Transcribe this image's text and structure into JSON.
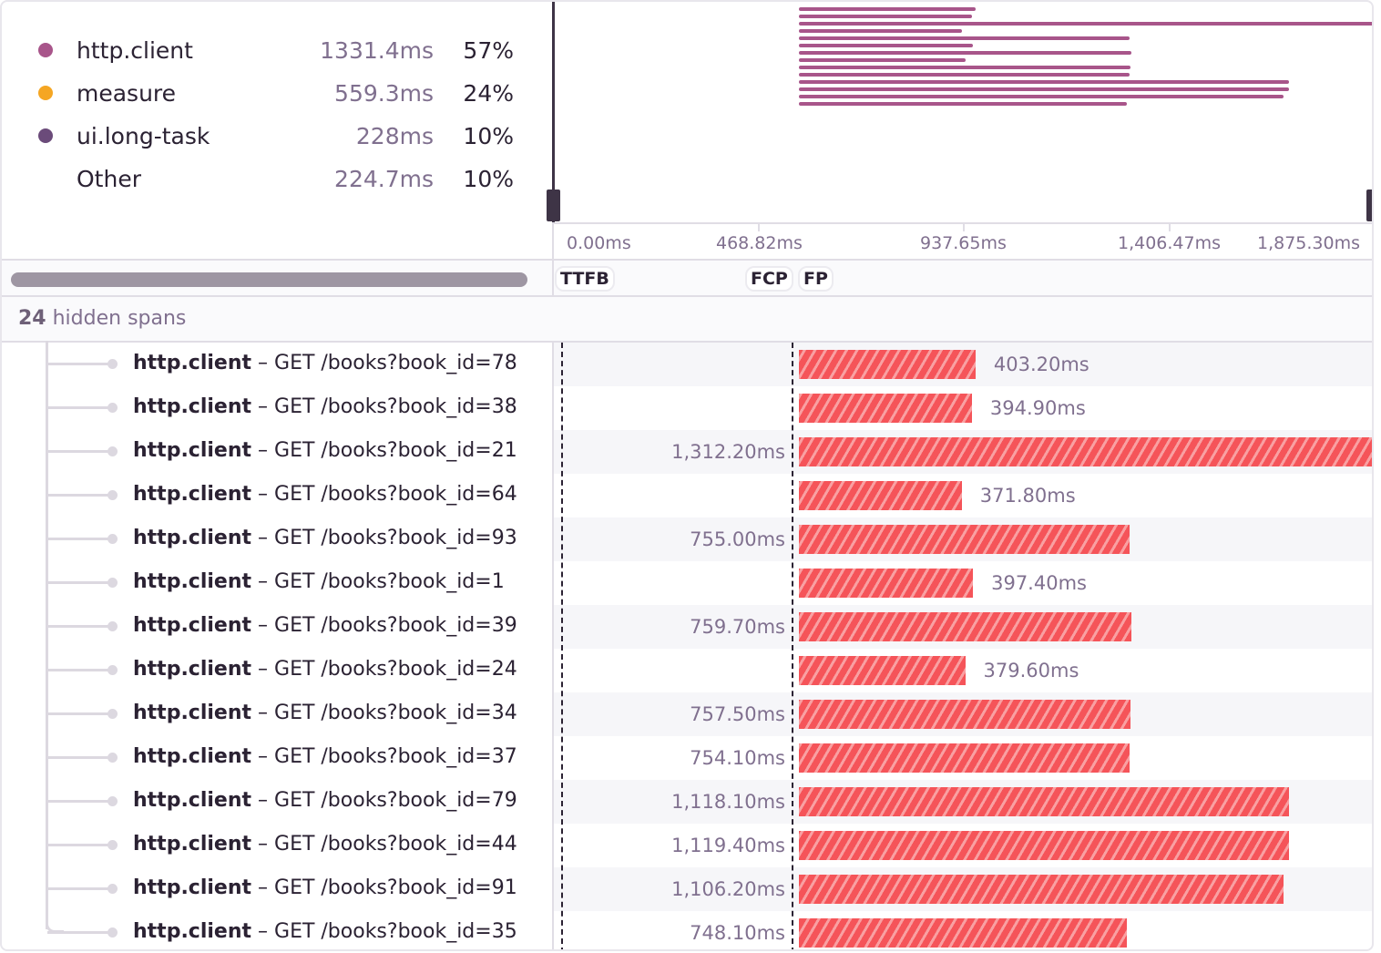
{
  "legend": [
    {
      "name": "http.client",
      "duration": "1331.4ms",
      "percent": "57%",
      "color": "#a8558a"
    },
    {
      "name": "measure",
      "duration": "559.3ms",
      "percent": "24%",
      "color": "#f5a623"
    },
    {
      "name": "ui.long-task",
      "duration": "228ms",
      "percent": "10%",
      "color": "#6b4b7a"
    },
    {
      "name": "Other",
      "duration": "224.7ms",
      "percent": "10%",
      "color": ""
    }
  ],
  "axis": {
    "ticks": [
      "0.00ms",
      "468.82ms",
      "937.65ms",
      "1,406.47ms",
      "1,875.30ms"
    ]
  },
  "markers": [
    "TTFB",
    "FCP",
    "FP"
  ],
  "hidden_spans": {
    "count": "24",
    "label": " hidden spans"
  },
  "colors": {
    "span_bar": "#f55459",
    "minimap_bar": "#a8558a"
  },
  "spans": [
    {
      "op": "http.client",
      "desc": " – GET /books?book_id=78",
      "duration": "403.20ms",
      "ms": 403.2
    },
    {
      "op": "http.client",
      "desc": " – GET /books?book_id=38",
      "duration": "394.90ms",
      "ms": 394.9
    },
    {
      "op": "http.client",
      "desc": " – GET /books?book_id=21",
      "duration": "1,312.20ms",
      "ms": 1312.2
    },
    {
      "op": "http.client",
      "desc": " – GET /books?book_id=64",
      "duration": "371.80ms",
      "ms": 371.8
    },
    {
      "op": "http.client",
      "desc": " – GET /books?book_id=93",
      "duration": "755.00ms",
      "ms": 755.0
    },
    {
      "op": "http.client",
      "desc": " – GET /books?book_id=1",
      "duration": "397.40ms",
      "ms": 397.4
    },
    {
      "op": "http.client",
      "desc": " – GET /books?book_id=39",
      "duration": "759.70ms",
      "ms": 759.7
    },
    {
      "op": "http.client",
      "desc": " – GET /books?book_id=24",
      "duration": "379.60ms",
      "ms": 379.6
    },
    {
      "op": "http.client",
      "desc": " – GET /books?book_id=34",
      "duration": "757.50ms",
      "ms": 757.5
    },
    {
      "op": "http.client",
      "desc": " – GET /books?book_id=37",
      "duration": "754.10ms",
      "ms": 754.1
    },
    {
      "op": "http.client",
      "desc": " – GET /books?book_id=79",
      "duration": "1,118.10ms",
      "ms": 1118.1
    },
    {
      "op": "http.client",
      "desc": " – GET /books?book_id=44",
      "duration": "1,119.40ms",
      "ms": 1119.4
    },
    {
      "op": "http.client",
      "desc": " – GET /books?book_id=91",
      "duration": "1,106.20ms",
      "ms": 1106.2
    },
    {
      "op": "http.client",
      "desc": " – GET /books?book_id=35",
      "duration": "748.10ms",
      "ms": 748.1
    }
  ]
}
